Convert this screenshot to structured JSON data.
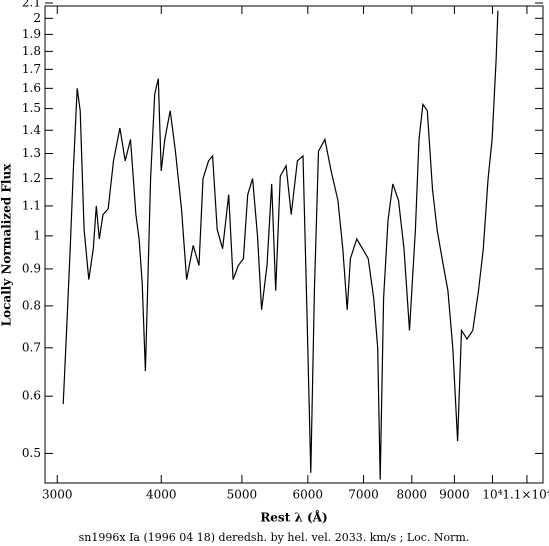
{
  "chart_data": {
    "type": "line",
    "x_label": "Rest λ (Å)",
    "y_label": "Locally Normalized Flux",
    "caption": "sn1996x Ia (1996 04 18) deredsh. by hel. vel.  2033. km/s ;  Loc. Norm.",
    "log_x": true,
    "log_y": true,
    "color": "#000000",
    "xlim": [
      2900,
      11500
    ],
    "ylim": [
      0.455,
      2.08
    ],
    "xticks": [
      3000,
      4000,
      5000,
      6000,
      7000,
      8000,
      9000,
      {
        "value": 10000,
        "label": "10⁴"
      },
      {
        "value": 11000,
        "label": "1.1×10⁴"
      }
    ],
    "yticks": [
      0.5,
      0.6,
      0.7,
      0.8,
      0.9,
      1,
      1.1,
      1.2,
      1.3,
      1.4,
      1.5,
      1.6,
      1.7,
      1.8,
      1.9,
      2,
      2.1
    ],
    "x": [
      3050,
      3075,
      3109,
      3136,
      3170,
      3197,
      3231,
      3274,
      3315,
      3342,
      3370,
      3405,
      3454,
      3505,
      3568,
      3620,
      3674,
      3729,
      3762,
      3795,
      3828,
      3884,
      3928,
      3967,
      4000,
      4040,
      4100,
      4160,
      4230,
      4290,
      4370,
      4440,
      4490,
      4560,
      4610,
      4670,
      4740,
      4820,
      4880,
      4950,
      5020,
      5080,
      5150,
      5220,
      5280,
      5360,
      5430,
      5490,
      5560,
      5650,
      5730,
      5830,
      5920,
      5980,
      6050,
      6110,
      6180,
      6290,
      6400,
      6520,
      6610,
      6690,
      6750,
      6870,
      6980,
      7090,
      7200,
      7280,
      7330,
      7400,
      7490,
      7590,
      7710,
      7830,
      7950,
      8080,
      8160,
      8250,
      8350,
      8470,
      8580,
      8700,
      8840,
      8960,
      9080,
      9180,
      9320,
      9470,
      9620,
      9750,
      9880,
      9990,
      10100,
      10150
    ],
    "values": [
      0.585,
      0.72,
      0.96,
      1.23,
      1.6,
      1.49,
      1.02,
      0.87,
      0.96,
      1.1,
      0.99,
      1.07,
      1.09,
      1.27,
      1.41,
      1.27,
      1.36,
      1.07,
      0.99,
      0.86,
      0.65,
      1.2,
      1.57,
      1.65,
      1.23,
      1.36,
      1.49,
      1.31,
      1.09,
      0.87,
      0.97,
      0.91,
      1.2,
      1.27,
      1.29,
      1.02,
      0.96,
      1.14,
      0.87,
      0.91,
      0.93,
      1.14,
      1.2,
      1,
      0.79,
      0.91,
      1.18,
      0.84,
      1.21,
      1.25,
      1.07,
      1.27,
      1.29,
      0.82,
      0.47,
      0.84,
      1.31,
      1.36,
      1.23,
      1.12,
      0.96,
      0.79,
      0.93,
      0.99,
      0.96,
      0.93,
      0.82,
      0.7,
      0.46,
      0.82,
      1.05,
      1.18,
      1.12,
      0.96,
      0.74,
      1.02,
      1.36,
      1.52,
      1.49,
      1.16,
      1.02,
      0.93,
      0.84,
      0.7,
      0.52,
      0.74,
      0.72,
      0.74,
      0.84,
      0.96,
      1.2,
      1.36,
      1.75,
      2.05
    ]
  }
}
